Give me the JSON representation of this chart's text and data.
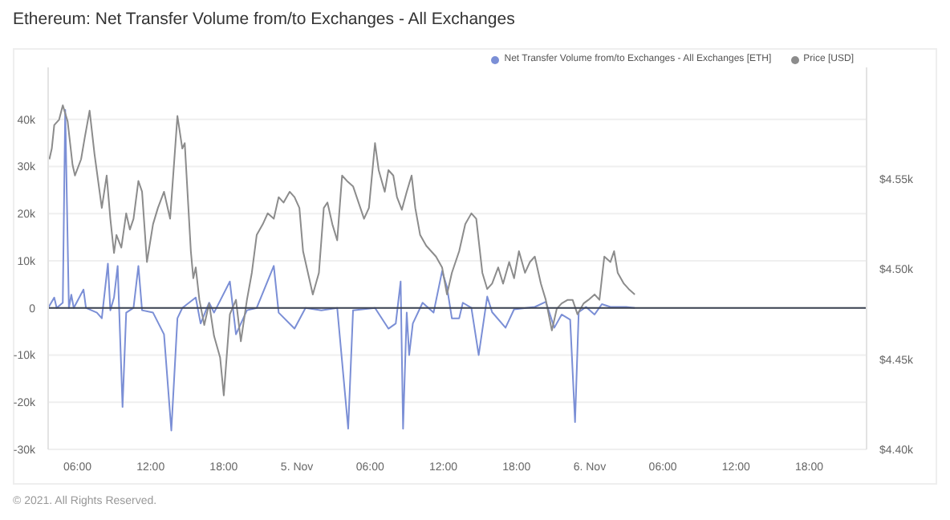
{
  "chart_data": {
    "type": "line",
    "title": "Ethereum: Net Transfer Volume from/to Exchanges - All Exchanges",
    "annotations": [
      "© 2021. All Rights Reserved."
    ],
    "legend": "top right",
    "grid": "y",
    "marker": "none",
    "line_style": "solid",
    "xlim": [
      "2021-11-04T03:36",
      "2021-11-06T22:42"
    ],
    "xticks": [
      {
        "value": "2021-11-04T06:00",
        "label": "06:00"
      },
      {
        "value": "2021-11-04T12:00",
        "label": "12:00"
      },
      {
        "value": "2021-11-04T18:00",
        "label": "18:00"
      },
      {
        "value": "2021-11-05",
        "label": "5. Nov"
      },
      {
        "value": "2021-11-05T06:00",
        "label": "06:00"
      },
      {
        "value": "2021-11-05T12:00",
        "label": "12:00"
      },
      {
        "value": "2021-11-05T18:00",
        "label": "18:00"
      },
      {
        "value": "2021-11-06",
        "label": "6. Nov"
      },
      {
        "value": "2021-11-06T06:00",
        "label": "06:00"
      },
      {
        "value": "2021-11-06T12:00",
        "label": "12:00"
      },
      {
        "value": "2021-11-06T18:00",
        "label": "18:00"
      }
    ],
    "ylim": [
      -30000,
      51000
    ],
    "yticks": [
      {
        "value": -30000,
        "label": "-30k"
      },
      {
        "value": -20000,
        "label": "-20k"
      },
      {
        "value": -10000,
        "label": "-10k"
      },
      0,
      {
        "value": 10000,
        "label": "10k"
      },
      {
        "value": 20000,
        "label": "20k"
      },
      {
        "value": 30000,
        "label": "30k"
      },
      {
        "value": 40000,
        "label": "40k"
      }
    ],
    "y2lim": [
      4400,
      4612
    ],
    "y2ticks": [
      {
        "value": 4400,
        "label": "$4.40k"
      },
      {
        "value": 4450,
        "label": "$4.45k"
      },
      {
        "value": 4500,
        "label": "$4.50k"
      },
      {
        "value": 4550,
        "label": "$4.55k"
      }
    ],
    "ref_lines": [
      {
        "axis": "y",
        "value": 0,
        "color": "#3a4150"
      }
    ],
    "series": [
      {
        "name": "Net Transfer Volume from/to Exchanges - All Exchanges [ETH]",
        "color": "#7b8fd6",
        "x": [
          "2021-11-04T03:36",
          "2021-11-04T04:06",
          "2021-11-04T04:18",
          "2021-11-04T04:48",
          "2021-11-04T05:00",
          "2021-11-04T05:18",
          "2021-11-04T05:30",
          "2021-11-04T05:42",
          "2021-11-04T06:30",
          "2021-11-04T06:42",
          "2021-11-04T07:36",
          "2021-11-04T08:00",
          "2021-11-04T08:30",
          "2021-11-04T08:42",
          "2021-11-04T09:00",
          "2021-11-04T09:18",
          "2021-11-04T09:42",
          "2021-11-04T10:00",
          "2021-11-04T10:36",
          "2021-11-04T11:00",
          "2021-11-04T11:18",
          "2021-11-04T12:12",
          "2021-11-04T13:06",
          "2021-11-04T13:42",
          "2021-11-04T14:12",
          "2021-11-04T14:36",
          "2021-11-04T15:42",
          "2021-11-04T16:06",
          "2021-11-04T16:48",
          "2021-11-04T17:12",
          "2021-11-04T18:30",
          "2021-11-04T19:00",
          "2021-11-04T19:54",
          "2021-11-04T20:42",
          "2021-11-04T22:06",
          "2021-11-04T22:30",
          "2021-11-04T23:48",
          "2021-11-05T00:42",
          "2021-11-05T02:00",
          "2021-11-05T03:18",
          "2021-11-05T04:12",
          "2021-11-05T04:36",
          "2021-11-05T06:24",
          "2021-11-05T07:30",
          "2021-11-05T08:06",
          "2021-11-05T08:30",
          "2021-11-05T08:42",
          "2021-11-05T09:00",
          "2021-11-05T09:12",
          "2021-11-05T09:30",
          "2021-11-05T10:18",
          "2021-11-05T11:12",
          "2021-11-05T11:54",
          "2021-11-05T12:18",
          "2021-11-05T12:42",
          "2021-11-05T13:18",
          "2021-11-05T13:36",
          "2021-11-05T14:18",
          "2021-11-05T14:54",
          "2021-11-05T15:36",
          "2021-11-05T16:00",
          "2021-11-05T17:06",
          "2021-11-05T17:48",
          "2021-11-05T19:30",
          "2021-11-05T20:24",
          "2021-11-05T21:06",
          "2021-11-05T21:42",
          "2021-11-05T22:24",
          "2021-11-05T22:48",
          "2021-11-05T23:06",
          "2021-11-05T23:42",
          "2021-11-06T00:24",
          "2021-11-06T01:00",
          "2021-11-06T01:42",
          "2021-11-06T03:00",
          "2021-11-06T03:42"
        ],
        "values": [
          0,
          2200,
          0,
          1100,
          42000,
          0,
          2800,
          0,
          3900,
          0,
          -1000,
          -2200,
          9400,
          -500,
          2200,
          8900,
          -21000,
          -1000,
          0,
          8900,
          -500,
          -1000,
          -5600,
          -26000,
          -2200,
          0,
          2200,
          -3300,
          1100,
          -1000,
          5600,
          -5600,
          -500,
          0,
          8900,
          -1000,
          -4400,
          0,
          -500,
          0,
          -25600,
          -500,
          0,
          -4400,
          -3300,
          5600,
          -25600,
          -1000,
          -10000,
          -3300,
          1100,
          -1000,
          7800,
          4400,
          -2200,
          -2200,
          1100,
          0,
          -10000,
          2400,
          -900,
          -4200,
          -300,
          200,
          1300,
          -4200,
          -1400,
          -2500,
          -24200,
          -900,
          200,
          -1400,
          800,
          200,
          200,
          0
        ]
      },
      {
        "name": "Price [USD]",
        "color": "#8c8c8c",
        "axis": "y2",
        "x": [
          "2021-11-04T03:42",
          "2021-11-04T03:54",
          "2021-11-04T04:06",
          "2021-11-04T04:30",
          "2021-11-04T04:48",
          "2021-11-04T05:12",
          "2021-11-04T05:36",
          "2021-11-04T05:48",
          "2021-11-04T06:18",
          "2021-11-04T06:36",
          "2021-11-04T07:00",
          "2021-11-04T07:24",
          "2021-11-04T08:00",
          "2021-11-04T08:24",
          "2021-11-04T08:42",
          "2021-11-04T09:00",
          "2021-11-04T09:12",
          "2021-11-04T09:36",
          "2021-11-04T10:00",
          "2021-11-04T10:18",
          "2021-11-04T10:36",
          "2021-11-04T11:00",
          "2021-11-04T11:18",
          "2021-11-04T11:42",
          "2021-11-04T12:12",
          "2021-11-04T12:36",
          "2021-11-04T13:06",
          "2021-11-04T13:36",
          "2021-11-04T14:12",
          "2021-11-04T14:36",
          "2021-11-04T14:48",
          "2021-11-04T15:18",
          "2021-11-04T15:30",
          "2021-11-04T15:42",
          "2021-11-04T16:00",
          "2021-11-04T16:24",
          "2021-11-04T16:48",
          "2021-11-04T17:12",
          "2021-11-04T17:42",
          "2021-11-04T18:00",
          "2021-11-04T18:18",
          "2021-11-04T18:30",
          "2021-11-04T19:00",
          "2021-11-04T19:24",
          "2021-11-04T19:54",
          "2021-11-04T20:18",
          "2021-11-04T20:42",
          "2021-11-04T21:12",
          "2021-11-04T21:36",
          "2021-11-04T22:06",
          "2021-11-04T22:30",
          "2021-11-04T22:54",
          "2021-11-04T23:24",
          "2021-11-04T23:48",
          "2021-11-05T00:12",
          "2021-11-05T00:30",
          "2021-11-05T00:54",
          "2021-11-05T01:18",
          "2021-11-05T01:48",
          "2021-11-05T02:12",
          "2021-11-05T02:30",
          "2021-11-05T02:54",
          "2021-11-05T03:18",
          "2021-11-05T03:42",
          "2021-11-05T04:06",
          "2021-11-05T04:36",
          "2021-11-05T05:12",
          "2021-11-05T05:30",
          "2021-11-05T05:54",
          "2021-11-05T06:24",
          "2021-11-05T06:42",
          "2021-11-05T07:12",
          "2021-11-05T07:30",
          "2021-11-05T07:54",
          "2021-11-05T08:12",
          "2021-11-05T08:36",
          "2021-11-05T09:00",
          "2021-11-05T09:24",
          "2021-11-05T09:42",
          "2021-11-05T10:06",
          "2021-11-05T10:36",
          "2021-11-05T11:00",
          "2021-11-05T11:24",
          "2021-11-05T11:54",
          "2021-11-05T12:18",
          "2021-11-05T12:42",
          "2021-11-05T13:18",
          "2021-11-05T13:48",
          "2021-11-05T14:18",
          "2021-11-05T14:42",
          "2021-11-05T15:12",
          "2021-11-05T15:36",
          "2021-11-05T16:00",
          "2021-11-05T16:30",
          "2021-11-05T16:54",
          "2021-11-05T17:24",
          "2021-11-05T17:48",
          "2021-11-05T18:12",
          "2021-11-05T18:42",
          "2021-11-05T19:06",
          "2021-11-05T19:30",
          "2021-11-05T20:00",
          "2021-11-05T20:24",
          "2021-11-05T20:54",
          "2021-11-05T21:18",
          "2021-11-05T21:42",
          "2021-11-05T22:12",
          "2021-11-05T22:36",
          "2021-11-05T23:00",
          "2021-11-05T23:30",
          "2021-11-05T23:54",
          "2021-11-06T00:24",
          "2021-11-06T00:48",
          "2021-11-06T01:12",
          "2021-11-06T01:42",
          "2021-11-06T02:00",
          "2021-11-06T02:18",
          "2021-11-06T02:48",
          "2021-11-06T03:12",
          "2021-11-06T03:42"
        ],
        "values": [
          4561,
          4567,
          4580,
          4583,
          4591,
          4582,
          4558,
          4552,
          4561,
          4573,
          4588,
          4564,
          4534,
          4552,
          4528,
          4509,
          4519,
          4512,
          4531,
          4522,
          4528,
          4549,
          4543,
          4504,
          4525,
          4534,
          4543,
          4528,
          4585,
          4567,
          4570,
          4510,
          4495,
          4501,
          4483,
          4469,
          4481,
          4463,
          4451,
          4430,
          4457,
          4475,
          4483,
          4460,
          4483,
          4498,
          4519,
          4525,
          4531,
          4528,
          4540,
          4537,
          4543,
          4540,
          4534,
          4510,
          4498,
          4486,
          4498,
          4534,
          4537,
          4525,
          4516,
          4552,
          4549,
          4546,
          4534,
          4528,
          4534,
          4570,
          4555,
          4543,
          4555,
          4552,
          4540,
          4533,
          4543,
          4552,
          4534,
          4519,
          4513,
          4510,
          4507,
          4501,
          4486,
          4498,
          4510,
          4525,
          4531,
          4528,
          4498,
          4489,
          4492,
          4501,
          4492,
          4504,
          4495,
          4510,
          4498,
          4504,
          4507,
          4492,
          4483,
          4466,
          4478,
          4481,
          4483,
          4483,
          4475,
          4481,
          4483,
          4486,
          4483,
          4507,
          4504,
          4510,
          4498,
          4492,
          4489,
          4486
        ]
      }
    ]
  }
}
